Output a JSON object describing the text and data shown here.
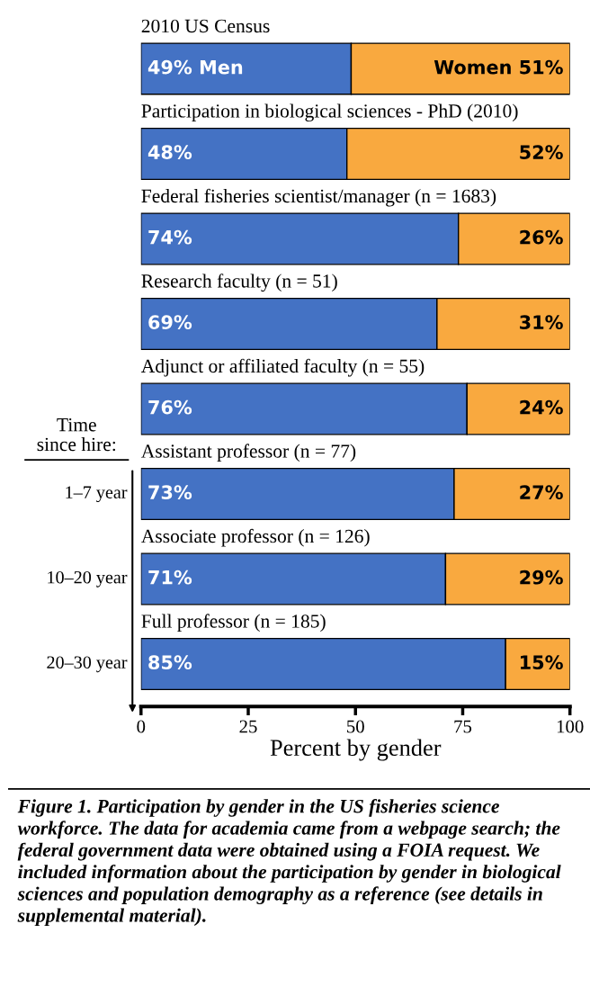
{
  "chart_data": {
    "type": "bar",
    "orientation": "horizontal",
    "stacked": true,
    "tick_labels": "x",
    "categories": [
      "2010 US Census",
      "Participation in biological sciences - PhD (2010)",
      "Federal fisheries scientist/manager (n = 1683)",
      "Research faculty (n = 51)",
      "Adjunct or affiliated faculty (n = 55)",
      "Assistant professor (n = 77)",
      "Associate professor (n = 126)",
      "Full professor (n = 185)"
    ],
    "series": [
      {
        "color": "#4472c4",
        "values": [
          49,
          48,
          74,
          69,
          76,
          73,
          71,
          85
        ],
        "value_labels": [
          "49% Men",
          "48%",
          "74%",
          "69%",
          "76%",
          "73%",
          "71%",
          "85%"
        ]
      },
      {
        "color": "#f9a93f",
        "values": [
          51,
          52,
          26,
          31,
          24,
          27,
          29,
          15
        ],
        "value_labels": [
          "Women 51%",
          "52%",
          "26%",
          "31%",
          "24%",
          "27%",
          "29%",
          "15%"
        ]
      }
    ],
    "xlim": [
      0,
      100
    ],
    "xticks": [
      0,
      25,
      50,
      75,
      100
    ],
    "xlabel": "Percent by gender",
    "grid": false,
    "annotations": [
      "Time since hire:",
      "1–7 year",
      "10–20 year",
      "20–30 year",
      "Figure 1. Participation by gender in the US fisheries science workforce. The data for academia came from a webpage search; the federal government data were obtained using a FOIA request. We included information about the participation by gender in biological sciences and population demography as a reference (see details in supplemental material)."
    ]
  }
}
